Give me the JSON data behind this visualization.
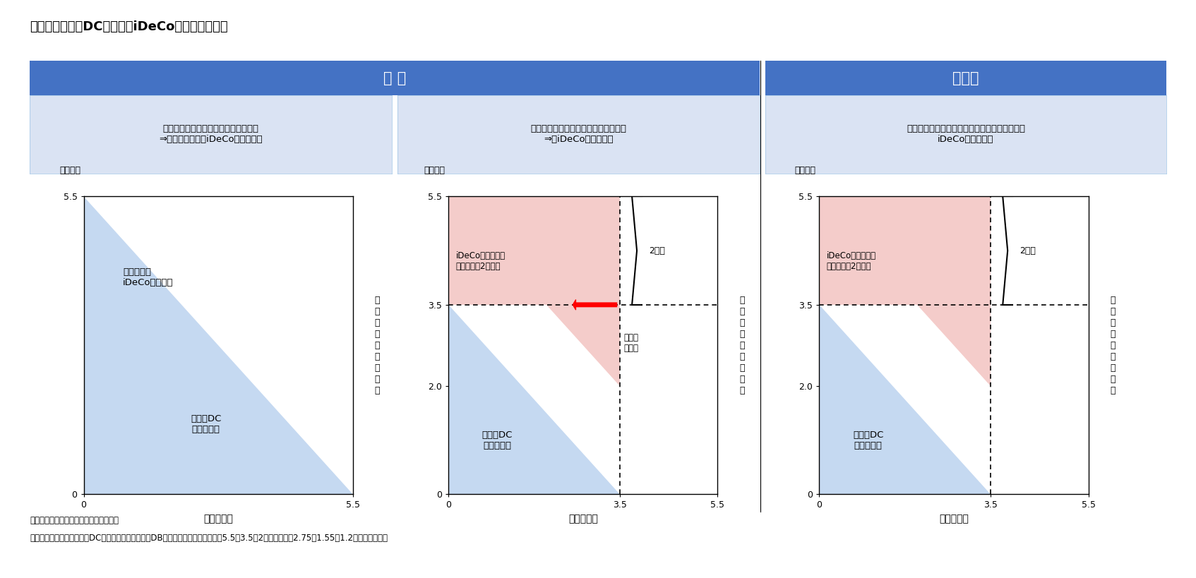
{
  "title": "図表２　企業型DC加入者のiDeCo加入の要件緩和",
  "header_left": "現 行",
  "header_right": "改正法",
  "header_bg": "#4472C4",
  "header_text_color": "#FFFFFF",
  "section1_label": "「規約の定め、拠出上限引下げ」無し\n⇒　加入者全員がiDeCoに加入不可",
  "section2_label": "「規約の定め、拠出上限引下げ」有り\n⇒　iDeCoに加入可能",
  "section3_label": "「規約の定め、拠出上限引下げ」がなくても、\niDeCoに加入可能",
  "section_bg": "#DAE3F3",
  "section_border": "#9DC3E6",
  "y_label": "（万円）",
  "x_label": "事業主掛金",
  "y_axis_label_chars": [
    "加",
    "入",
    "者",
    "＋",
    "事",
    "業",
    "主",
    "掛",
    "金"
  ],
  "y_max": 5.5,
  "y_min": 0,
  "x_max": 5.5,
  "x_min": 0,
  "limit_val": 3.5,
  "limit2_val": 2.0,
  "blue_fill": "#C5D9F1",
  "pink_fill": "#F4CCCA",
  "note1": "出所）厚生労働省の資料をもとに作成。",
  "note2": "注）図中の金額は、企業型DCのみに加入する場合。DBなどにも加入する場合は、5.5、3.5、2が、それぞれ2.75、1.55、1.2に置き換わる。"
}
